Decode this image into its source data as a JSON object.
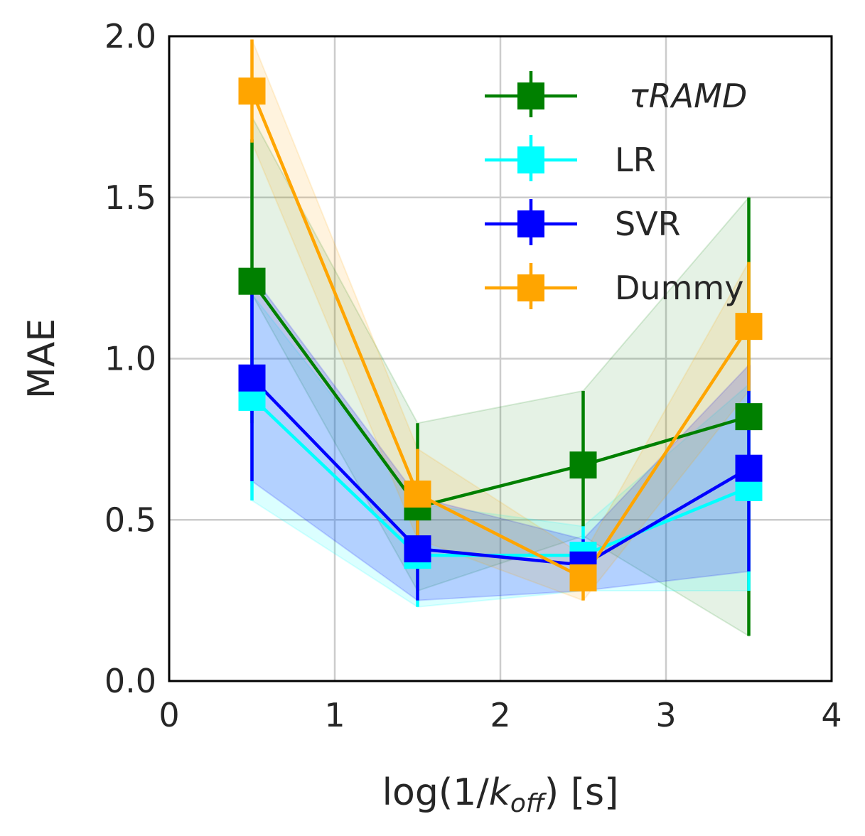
{
  "chart_data": {
    "type": "line",
    "title": "",
    "xlabel": "log(1/k_off) [s]",
    "xlabel_parts": {
      "prefix": "log(1/",
      "k": "k",
      "sub": "off",
      "suffix": ") [s]"
    },
    "ylabel": "MAE",
    "xlim": [
      0,
      4
    ],
    "ylim": [
      0,
      2
    ],
    "xticks": [
      0,
      1,
      2,
      3,
      4
    ],
    "xtick_labels": [
      "0",
      "1",
      "2",
      "3",
      "4"
    ],
    "yticks": [
      0,
      0.5,
      1,
      1.5,
      2
    ],
    "ytick_labels": [
      "0.0",
      "0.5",
      "1.0",
      "1.5",
      "2.0"
    ],
    "grid": true,
    "legend_position": "top-right",
    "x": [
      0.5,
      1.5,
      2.5,
      3.5
    ],
    "series": [
      {
        "name": "τRAMD",
        "color": "#008000",
        "marker": "square",
        "values": [
          1.24,
          0.54,
          0.67,
          0.82
        ],
        "err_low": [
          0.8,
          0.28,
          0.48,
          0.14
        ],
        "err_high": [
          1.68,
          0.8,
          0.9,
          1.5
        ],
        "band_low": [
          1.2,
          0.28,
          0.45,
          0.14
        ],
        "band_high": [
          1.75,
          0.8,
          0.9,
          1.5
        ]
      },
      {
        "name": "LR",
        "color": "#00ffff",
        "marker": "square",
        "values": [
          0.88,
          0.39,
          0.39,
          0.6
        ],
        "err_low": [
          0.56,
          0.23,
          0.3,
          0.28
        ],
        "err_high": [
          1.2,
          0.55,
          0.48,
          0.92
        ],
        "band_low": [
          0.56,
          0.23,
          0.28,
          0.28
        ],
        "band_high": [
          1.2,
          0.55,
          0.48,
          0.92
        ]
      },
      {
        "name": "SVR",
        "color": "#0000ff",
        "marker": "square",
        "values": [
          0.94,
          0.41,
          0.36,
          0.66
        ],
        "err_low": [
          0.62,
          0.25,
          0.28,
          0.34
        ],
        "err_high": [
          1.26,
          0.57,
          0.44,
          0.98
        ],
        "band_low": [
          0.62,
          0.25,
          0.28,
          0.34
        ],
        "band_high": [
          1.26,
          0.57,
          0.44,
          0.98
        ]
      },
      {
        "name": "Dummy",
        "color": "#ffa500",
        "marker": "square",
        "values": [
          1.83,
          0.58,
          0.32,
          1.1
        ],
        "err_low": [
          1.67,
          0.44,
          0.25,
          0.9
        ],
        "err_high": [
          1.99,
          0.72,
          0.39,
          1.3
        ],
        "band_low": [
          1.67,
          0.44,
          0.25,
          0.9
        ],
        "band_high": [
          1.99,
          0.72,
          0.39,
          1.3
        ]
      }
    ],
    "legend": {
      "entries": [
        {
          "label": "τRAMD",
          "italic": true,
          "color": "#008000"
        },
        {
          "label": "LR",
          "italic": false,
          "color": "#00ffff"
        },
        {
          "label": "SVR",
          "italic": false,
          "color": "#0000ff"
        },
        {
          "label": "Dummy",
          "italic": false,
          "color": "#ffa500"
        }
      ]
    },
    "colors": {
      "grid": "#cccccc",
      "frame": "#000000",
      "text": "#262626"
    }
  }
}
